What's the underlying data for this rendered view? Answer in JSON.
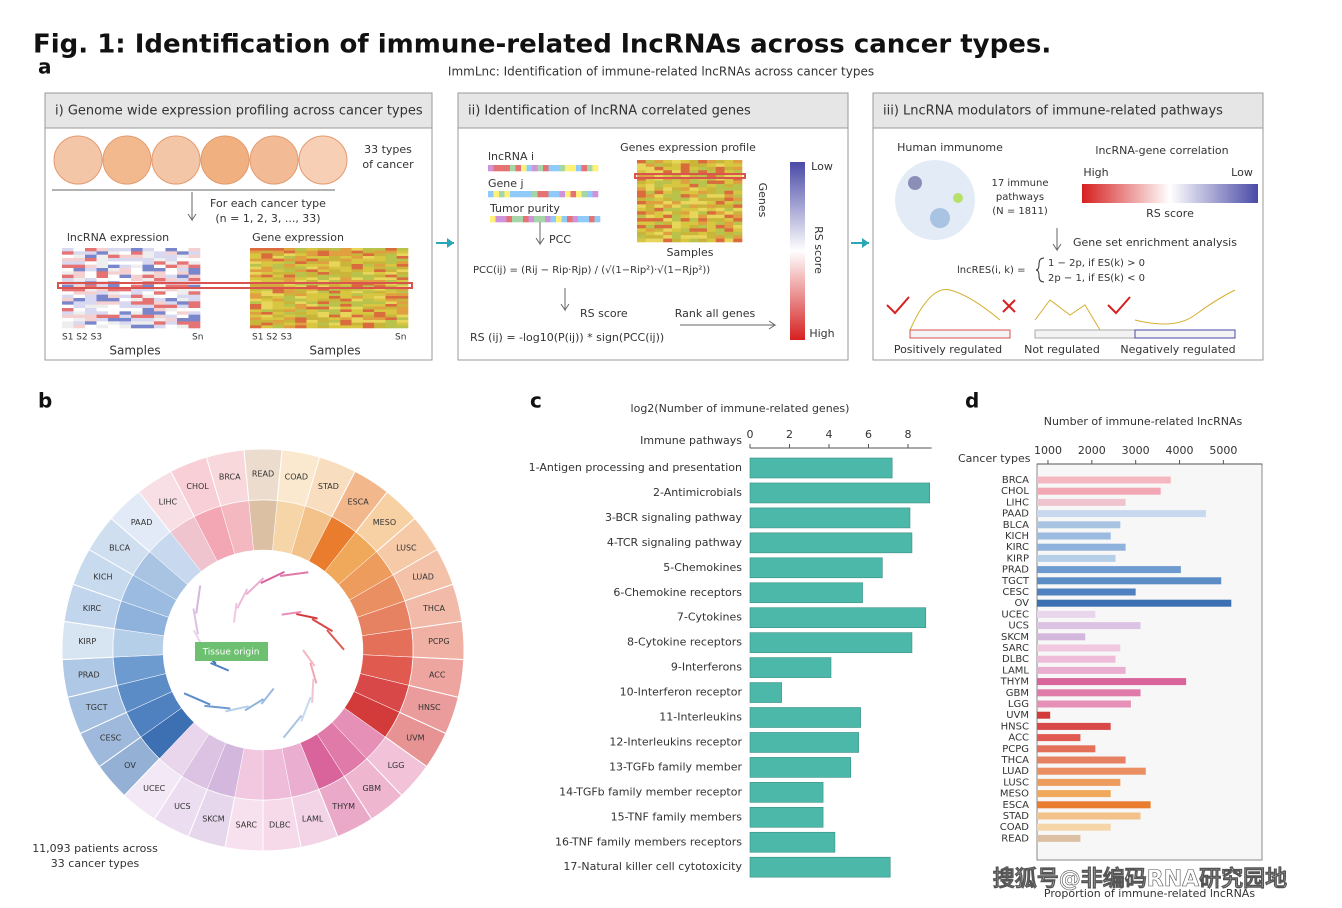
{
  "title": "Fig. 1: Identification of immune-related lncRNAs across cancer types.",
  "panel_labels": [
    "a",
    "b",
    "c",
    "d"
  ],
  "panel_a": {
    "title": "ImmLnc: Identification of immune-related lncRNAs across cancer types",
    "step1": {
      "header": "i) Genome wide expression profiling across cancer types",
      "cancer_count": "33 types",
      "cancer_count_sub": "of cancer",
      "loop": "For each cancer type",
      "loop_range": "(n = 1, 2, 3, ..., 33)",
      "lncrna_heatmap": "lncRNA expression",
      "gene_heatmap": "Gene expression",
      "samples_first": "S1  S2  S3",
      "samples_last": "Sn",
      "samples_first_gene": "S1  S2  S3",
      "samples_last_gene": "Sn",
      "samples_lncrna": "Samples",
      "samples_gene": "Samples"
    },
    "step2": {
      "header": "ii) Identification of lncRNA correlated genes",
      "lncrna": "lncRNA i",
      "gene": "Gene j",
      "purity": "Tumor purity",
      "pcc": "PCC",
      "formula": "PCC(ij) = (Rij − Rip·Rjp) / (√(1−Rip²)·√(1−Rjp²))",
      "rs": "RS score",
      "rs_formula": "RS (ij) = -log10(P(ij)) * sign(PCC(ij))",
      "profile": "Genes expression profile",
      "samples": "Samples",
      "genes": "Genes",
      "low": "Low",
      "high": "High",
      "scale": "RS score",
      "rank": "Rank all genes"
    },
    "step3": {
      "header": "iii) LncRNA modulators of immune-related pathways",
      "immunome": "Human immunome",
      "pathways": [
        "17 immune",
        "pathways",
        "(N = 1811)"
      ],
      "correlation": "lncRNA-gene correlation",
      "high": "High",
      "low": "Low",
      "scale": "RS score",
      "gsea": "Gene set enrichment analysis",
      "lncres": "lncRES(i, k) =",
      "case_pos": "1 − 2p, if ES(k) > 0",
      "case_neg": "2p − 1, if ES(k) < 0",
      "positive": "Positively regulated",
      "not": "Not regulated",
      "negative": "Negatively regulated"
    }
  },
  "panel_b": {
    "labels": [
      "READ",
      "COAD",
      "STAD",
      "ESCA",
      "MESO",
      "LUSC",
      "LUAD",
      "THCA",
      "PCPG",
      "ACC",
      "HNSC",
      "UVM",
      "LGG",
      "GBM",
      "THYM",
      "LAML",
      "DLBC",
      "SARC",
      "SKCM",
      "UCS",
      "UCEC",
      "OV",
      "CESC",
      "TGCT",
      "PRAD",
      "KIRP",
      "KIRC",
      "KICH",
      "BLCA",
      "PAAD",
      "LIHC",
      "CHOL",
      "BRCA"
    ],
    "center": "Tissue origin",
    "note": [
      "11,093 patients across",
      "33 cancer types"
    ]
  },
  "chart_data": [
    {
      "type": "bar",
      "orientation": "horizontal",
      "title": "log2(Number of immune-related genes)",
      "y_label": "Immune pathways",
      "categories": [
        "1-Antigen processing and presentation",
        "2-Antimicrobials",
        "3-BCR signaling pathway",
        "4-TCR signaling pathway",
        "5-Chemokines",
        "6-Chemokine receptors",
        "7-Cytokines",
        "8-Cytokine receptors",
        "9-Interferons",
        "10-Interferon receptor",
        "11-Interleukins",
        "12-Interleukins receptor",
        "13-TGFb family member",
        "14-TGFb family member receptor",
        "15-TNF family members",
        "16-TNF family members receptors",
        "17-Natural killer cell cytotoxicity"
      ],
      "values": [
        7.2,
        9.1,
        8.1,
        8.2,
        6.7,
        5.7,
        8.9,
        8.2,
        4.1,
        1.6,
        5.6,
        5.5,
        5.1,
        3.7,
        3.7,
        4.3,
        7.1
      ],
      "color": "#4cb8a9",
      "xlim": [
        0,
        9.2
      ],
      "xticks": [
        0,
        2,
        4,
        6,
        8
      ]
    },
    {
      "type": "bar",
      "orientation": "horizontal",
      "title": "Number of immune-related lncRNAs",
      "y_label": "Cancer types",
      "x_label": "Proportion of immune-related lncRNAs",
      "categories": [
        "BRCA",
        "CHOL",
        "LIHC",
        "PAAD",
        "BLCA",
        "KICH",
        "KIRC",
        "KIRP",
        "PRAD",
        "TGCT",
        "CESC",
        "OV",
        "UCEC",
        "UCS",
        "SKCM",
        "SARC",
        "DLBC",
        "LAML",
        "THYM",
        "GBM",
        "LGG",
        "UVM",
        "HNSC",
        "ACC",
        "PCPG",
        "THCA",
        "LUAD",
        "LUSC",
        "MESO",
        "ESCA",
        "STAD",
        "COAD",
        "READ"
      ],
      "values": [
        3800,
        3570,
        2770,
        4600,
        2650,
        2430,
        2770,
        2540,
        4030,
        4950,
        3000,
        5180,
        2080,
        3110,
        1850,
        2650,
        2540,
        2770,
        4150,
        3110,
        2890,
        1050,
        2430,
        1740,
        2080,
        2770,
        3230,
        2650,
        2430,
        3340,
        3110,
        2430,
        1740
      ],
      "colors": [
        "#f4b8c0",
        "#f3a7b5",
        "#f0c4cf",
        "#c8d8ee",
        "#a9c4e2",
        "#9bbbe0",
        "#8eb2dc",
        "#b6cfe9",
        "#6d9bd0",
        "#5b8cc6",
        "#4f80bf",
        "#3d6fb3",
        "#e9d6ec",
        "#dcc2e3",
        "#d4b7dd",
        "#f2c8e0",
        "#eebbd9",
        "#eaaed1",
        "#d9639b",
        "#e07aa8",
        "#e690b8",
        "#d33a3a",
        "#d94848",
        "#e05a50",
        "#e4705a",
        "#e68262",
        "#ea8f62",
        "#ee9c5e",
        "#f0a95a",
        "#e97c2d",
        "#f2c28a",
        "#f6d6a8",
        "#dcc0a4"
      ],
      "xlim": [
        750,
        5880
      ],
      "xticks": [
        1000,
        2000,
        3000,
        4000,
        5000
      ]
    }
  ],
  "watermark": "搜狐号@非编码RNA研究园地"
}
